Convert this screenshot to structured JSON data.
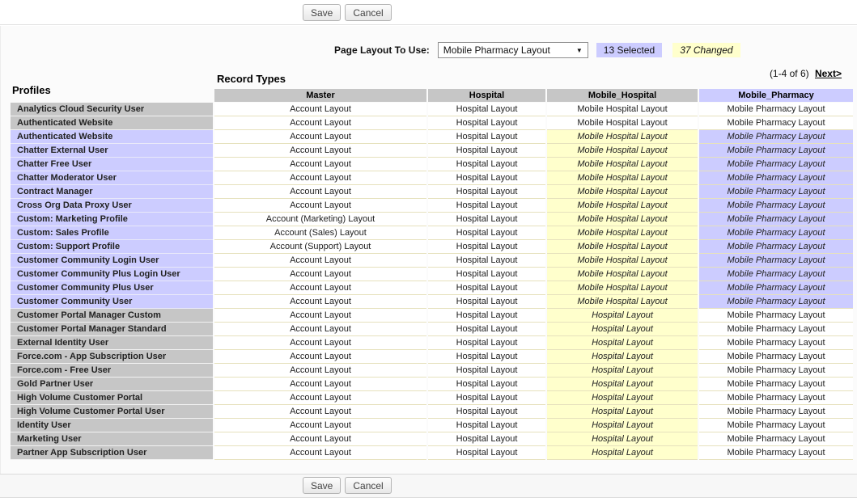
{
  "toolbars": {
    "top": {
      "save": "Save",
      "cancel": "Cancel"
    },
    "bottom": {
      "save": "Save",
      "cancel": "Cancel"
    }
  },
  "controls": {
    "page_layout_label": "Page Layout To Use:",
    "selected_layout": "Mobile Pharmacy Layout",
    "selected_badge": "13 Selected",
    "changed_badge": "37 Changed"
  },
  "pagination": {
    "range": "(1-4 of 6)",
    "next": "Next>"
  },
  "table": {
    "record_types_heading": "Record Types",
    "profiles_heading": "Profiles",
    "columns": [
      "Master",
      "Hospital",
      "Mobile_Hospital",
      "Mobile_Pharmacy"
    ],
    "rows": [
      {
        "profile": "Analytics Cloud Security User",
        "selected": false,
        "cells": [
          {
            "text": "Account Layout"
          },
          {
            "text": "Hospital Layout"
          },
          {
            "text": "Mobile Hospital Layout"
          },
          {
            "text": "Mobile Pharmacy Layout"
          }
        ]
      },
      {
        "profile": "Authenticated Website",
        "selected": false,
        "cells": [
          {
            "text": "Account Layout"
          },
          {
            "text": "Hospital Layout"
          },
          {
            "text": "Mobile Hospital Layout"
          },
          {
            "text": "Mobile Pharmacy Layout"
          }
        ]
      },
      {
        "profile": "Authenticated Website",
        "selected": true,
        "cells": [
          {
            "text": "Account Layout"
          },
          {
            "text": "Hospital Layout"
          },
          {
            "text": "Mobile Hospital Layout",
            "state": "changed"
          },
          {
            "text": "Mobile Pharmacy Layout",
            "state": "changed-selected"
          }
        ]
      },
      {
        "profile": "Chatter External User",
        "selected": true,
        "cells": [
          {
            "text": "Account Layout"
          },
          {
            "text": "Hospital Layout"
          },
          {
            "text": "Mobile Hospital Layout",
            "state": "changed"
          },
          {
            "text": "Mobile Pharmacy Layout",
            "state": "changed-selected"
          }
        ]
      },
      {
        "profile": "Chatter Free User",
        "selected": true,
        "cells": [
          {
            "text": "Account Layout"
          },
          {
            "text": "Hospital Layout"
          },
          {
            "text": "Mobile Hospital Layout",
            "state": "changed"
          },
          {
            "text": "Mobile Pharmacy Layout",
            "state": "changed-selected"
          }
        ]
      },
      {
        "profile": "Chatter Moderator User",
        "selected": true,
        "cells": [
          {
            "text": "Account Layout"
          },
          {
            "text": "Hospital Layout"
          },
          {
            "text": "Mobile Hospital Layout",
            "state": "changed"
          },
          {
            "text": "Mobile Pharmacy Layout",
            "state": "changed-selected"
          }
        ]
      },
      {
        "profile": "Contract Manager",
        "selected": true,
        "cells": [
          {
            "text": "Account Layout"
          },
          {
            "text": "Hospital Layout"
          },
          {
            "text": "Mobile Hospital Layout",
            "state": "changed"
          },
          {
            "text": "Mobile Pharmacy Layout",
            "state": "changed-selected"
          }
        ]
      },
      {
        "profile": "Cross Org Data Proxy User",
        "selected": true,
        "cells": [
          {
            "text": "Account Layout"
          },
          {
            "text": "Hospital Layout"
          },
          {
            "text": "Mobile Hospital Layout",
            "state": "changed"
          },
          {
            "text": "Mobile Pharmacy Layout",
            "state": "changed-selected"
          }
        ]
      },
      {
        "profile": "Custom: Marketing Profile",
        "selected": true,
        "cells": [
          {
            "text": "Account (Marketing) Layout"
          },
          {
            "text": "Hospital Layout"
          },
          {
            "text": "Mobile Hospital Layout",
            "state": "changed"
          },
          {
            "text": "Mobile Pharmacy Layout",
            "state": "changed-selected"
          }
        ]
      },
      {
        "profile": "Custom: Sales Profile",
        "selected": true,
        "cells": [
          {
            "text": "Account (Sales) Layout"
          },
          {
            "text": "Hospital Layout"
          },
          {
            "text": "Mobile Hospital Layout",
            "state": "changed"
          },
          {
            "text": "Mobile Pharmacy Layout",
            "state": "changed-selected"
          }
        ]
      },
      {
        "profile": "Custom: Support Profile",
        "selected": true,
        "cells": [
          {
            "text": "Account (Support) Layout"
          },
          {
            "text": "Hospital Layout"
          },
          {
            "text": "Mobile Hospital Layout",
            "state": "changed"
          },
          {
            "text": "Mobile Pharmacy Layout",
            "state": "changed-selected"
          }
        ]
      },
      {
        "profile": "Customer Community Login User",
        "selected": true,
        "cells": [
          {
            "text": "Account Layout"
          },
          {
            "text": "Hospital Layout"
          },
          {
            "text": "Mobile Hospital Layout",
            "state": "changed"
          },
          {
            "text": "Mobile Pharmacy Layout",
            "state": "changed-selected"
          }
        ]
      },
      {
        "profile": "Customer Community Plus Login User",
        "selected": true,
        "cells": [
          {
            "text": "Account Layout"
          },
          {
            "text": "Hospital Layout"
          },
          {
            "text": "Mobile Hospital Layout",
            "state": "changed"
          },
          {
            "text": "Mobile Pharmacy Layout",
            "state": "changed-selected"
          }
        ]
      },
      {
        "profile": "Customer Community Plus User",
        "selected": true,
        "cells": [
          {
            "text": "Account Layout"
          },
          {
            "text": "Hospital Layout"
          },
          {
            "text": "Mobile Hospital Layout",
            "state": "changed"
          },
          {
            "text": "Mobile Pharmacy Layout",
            "state": "changed-selected"
          }
        ]
      },
      {
        "profile": "Customer Community User",
        "selected": true,
        "cells": [
          {
            "text": "Account Layout"
          },
          {
            "text": "Hospital Layout"
          },
          {
            "text": "Mobile Hospital Layout",
            "state": "changed"
          },
          {
            "text": "Mobile Pharmacy Layout",
            "state": "changed-selected"
          }
        ]
      },
      {
        "profile": "Customer Portal Manager Custom",
        "selected": false,
        "cells": [
          {
            "text": "Account Layout"
          },
          {
            "text": "Hospital Layout"
          },
          {
            "text": "Hospital Layout",
            "state": "changed"
          },
          {
            "text": "Mobile Pharmacy Layout"
          }
        ]
      },
      {
        "profile": "Customer Portal Manager Standard",
        "selected": false,
        "cells": [
          {
            "text": "Account Layout"
          },
          {
            "text": "Hospital Layout"
          },
          {
            "text": "Hospital Layout",
            "state": "changed"
          },
          {
            "text": "Mobile Pharmacy Layout"
          }
        ]
      },
      {
        "profile": "External Identity User",
        "selected": false,
        "cells": [
          {
            "text": "Account Layout"
          },
          {
            "text": "Hospital Layout"
          },
          {
            "text": "Hospital Layout",
            "state": "changed"
          },
          {
            "text": "Mobile Pharmacy Layout"
          }
        ]
      },
      {
        "profile": "Force.com - App Subscription User",
        "selected": false,
        "cells": [
          {
            "text": "Account Layout"
          },
          {
            "text": "Hospital Layout"
          },
          {
            "text": "Hospital Layout",
            "state": "changed"
          },
          {
            "text": "Mobile Pharmacy Layout"
          }
        ]
      },
      {
        "profile": "Force.com - Free User",
        "selected": false,
        "cells": [
          {
            "text": "Account Layout"
          },
          {
            "text": "Hospital Layout"
          },
          {
            "text": "Hospital Layout",
            "state": "changed"
          },
          {
            "text": "Mobile Pharmacy Layout"
          }
        ]
      },
      {
        "profile": "Gold Partner User",
        "selected": false,
        "cells": [
          {
            "text": "Account Layout"
          },
          {
            "text": "Hospital Layout"
          },
          {
            "text": "Hospital Layout",
            "state": "changed"
          },
          {
            "text": "Mobile Pharmacy Layout"
          }
        ]
      },
      {
        "profile": "High Volume Customer Portal",
        "selected": false,
        "cells": [
          {
            "text": "Account Layout"
          },
          {
            "text": "Hospital Layout"
          },
          {
            "text": "Hospital Layout",
            "state": "changed"
          },
          {
            "text": "Mobile Pharmacy Layout"
          }
        ]
      },
      {
        "profile": "High Volume Customer Portal User",
        "selected": false,
        "cells": [
          {
            "text": "Account Layout"
          },
          {
            "text": "Hospital Layout"
          },
          {
            "text": "Hospital Layout",
            "state": "changed"
          },
          {
            "text": "Mobile Pharmacy Layout"
          }
        ]
      },
      {
        "profile": "Identity User",
        "selected": false,
        "cells": [
          {
            "text": "Account Layout"
          },
          {
            "text": "Hospital Layout"
          },
          {
            "text": "Hospital Layout",
            "state": "changed"
          },
          {
            "text": "Mobile Pharmacy Layout"
          }
        ]
      },
      {
        "profile": "Marketing User",
        "selected": false,
        "cells": [
          {
            "text": "Account Layout"
          },
          {
            "text": "Hospital Layout"
          },
          {
            "text": "Hospital Layout",
            "state": "changed"
          },
          {
            "text": "Mobile Pharmacy Layout"
          }
        ]
      },
      {
        "profile": "Partner App Subscription User",
        "selected": false,
        "cells": [
          {
            "text": "Account Layout"
          },
          {
            "text": "Hospital Layout"
          },
          {
            "text": "Hospital Layout",
            "state": "changed"
          },
          {
            "text": "Mobile Pharmacy Layout"
          }
        ]
      }
    ]
  },
  "colors": {
    "selected_lavender": "#ccccff",
    "changed_yellow": "#ffffcc",
    "header_gray": "#c6c6c6",
    "row_border_cream": "#e6e1bd"
  }
}
